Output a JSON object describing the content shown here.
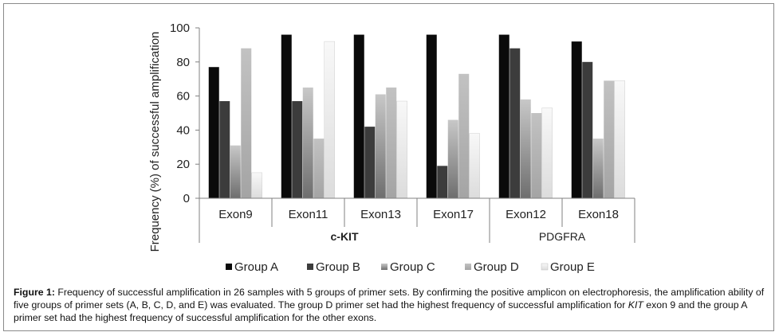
{
  "chart_data": {
    "type": "bar",
    "ylabel": "Frequency (%) of successful amplification",
    "ylim": [
      0,
      100
    ],
    "yticks": [
      0,
      20,
      40,
      60,
      80,
      100
    ],
    "categories": [
      "Exon9",
      "Exon11",
      "Exon13",
      "Exon17",
      "Exon12",
      "Exon18"
    ],
    "groups": [
      {
        "label": "c-KIT",
        "span": 4,
        "bold": true
      },
      {
        "label": "PDGFRA",
        "span": 2,
        "bold": false
      }
    ],
    "series": [
      {
        "name": "Group A",
        "color": "#0a0a0a",
        "values": [
          77,
          96,
          96,
          96,
          96,
          92
        ]
      },
      {
        "name": "Group B",
        "color": "#3c3c3c",
        "values": [
          57,
          57,
          42,
          19,
          88,
          80
        ]
      },
      {
        "name": "Group C",
        "color": "#8c8c8c",
        "values": [
          31,
          65,
          61,
          46,
          58,
          35
        ]
      },
      {
        "name": "Group D",
        "color": "#b0b0b0",
        "values": [
          88,
          35,
          65,
          73,
          50,
          69
        ]
      },
      {
        "name": "Group E",
        "color": "#ececec",
        "values": [
          15,
          92,
          57,
          38,
          53,
          69
        ]
      }
    ],
    "legend_position": "bottom"
  },
  "caption": {
    "label": "Figure 1:",
    "text_part1": " Frequency of successful amplification in 26 samples with 5 groups of primer sets. By confirming the positive amplicon on electrophoresis, the amplification ability of five groups of primer sets (A, B, C, D, and E) was evaluated. The group D primer set had the highest frequency of successful amplification for ",
    "italic": "KIT",
    "text_part2": " exon 9 and the group A primer set had the highest frequency of successful amplification for the other exons."
  }
}
